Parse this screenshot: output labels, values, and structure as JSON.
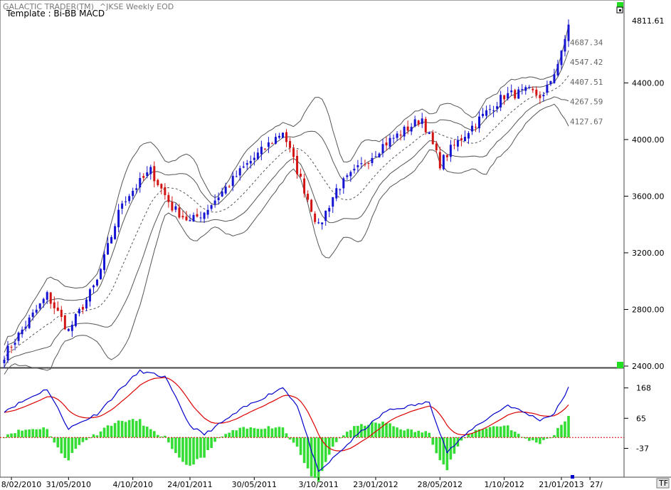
{
  "header": {
    "app": "GALACTIC TRADER(TM)",
    "symbol": "^JKSE Weekly EOD",
    "template": "Template : Bi-BB MACD"
  },
  "price_axis": {
    "last_price": "4811.61",
    "ticks": [
      "4400.00",
      "4000.00",
      "3600.00",
      "3200.00",
      "2800.00",
      "2400.00"
    ]
  },
  "band_labels": [
    "4687.34",
    "4547.42",
    "4407.51",
    "4267.59",
    "4127.67"
  ],
  "macd_axis": {
    "ticks": [
      "168",
      "65",
      "-37"
    ]
  },
  "date_axis": [
    "8/02/2010",
    "31/05/2010",
    "4/10/2010",
    "24/01/2011",
    "30/05/2011",
    "3/10/2011",
    "23/01/2012",
    "28/05/2012",
    "1/10/2012",
    "21/01/2013",
    "27/"
  ],
  "buttons": {
    "tf": "TF"
  },
  "colors": {
    "up": "#1414d2",
    "down": "#d21414",
    "hist": "#33dd33",
    "signal": "#dd0000",
    "macd": "#0000cc",
    "band": "#555555"
  },
  "chart_data": {
    "type": "candlestick",
    "title": "^JKSE Weekly EOD",
    "period": "weekly",
    "x_range": [
      "2010-01-25",
      "2013-02-04"
    ],
    "ylim": [
      2400,
      4900
    ],
    "price_path": [
      [
        "2010-01-25",
        2480
      ],
      [
        "2010-04-19",
        2900
      ],
      [
        "2010-05-31",
        2650
      ],
      [
        "2010-07-26",
        3000
      ],
      [
        "2010-09-13",
        3560
      ],
      [
        "2010-11-08",
        3780
      ],
      [
        "2010-12-20",
        3520
      ],
      [
        "2011-01-24",
        3420
      ],
      [
        "2011-02-21",
        3490
      ],
      [
        "2011-05-09",
        3800
      ],
      [
        "2011-07-25",
        4060
      ],
      [
        "2011-08-15",
        3850
      ],
      [
        "2011-10-03",
        3380
      ],
      [
        "2011-11-07",
        3650
      ],
      [
        "2011-12-19",
        3790
      ],
      [
        "2012-02-06",
        3960
      ],
      [
        "2012-04-23",
        4150
      ],
      [
        "2012-05-28",
        3830
      ],
      [
        "2012-06-18",
        3930
      ],
      [
        "2012-08-06",
        4120
      ],
      [
        "2012-10-01",
        4310
      ],
      [
        "2012-11-19",
        4340
      ],
      [
        "2012-12-17",
        4300
      ],
      [
        "2013-01-21",
        4600
      ],
      [
        "2013-02-04",
        4811.61
      ]
    ],
    "last_close": 4811.61,
    "bands_at_last_bar": [
      4687.34,
      4547.42,
      4407.51,
      4267.59,
      4127.67
    ],
    "macd": {
      "ylim": [
        -130,
        230
      ],
      "ticks": [
        168,
        65,
        -37
      ],
      "path": [
        [
          "2010-01-25",
          90
        ],
        [
          "2010-04-19",
          165
        ],
        [
          "2010-05-31",
          30
        ],
        [
          "2010-07-26",
          80
        ],
        [
          "2010-09-13",
          170
        ],
        [
          "2010-10-18",
          225
        ],
        [
          "2010-12-06",
          205
        ],
        [
          "2011-01-24",
          40
        ],
        [
          "2011-02-21",
          10
        ],
        [
          "2011-05-09",
          100
        ],
        [
          "2011-07-25",
          170
        ],
        [
          "2011-08-22",
          110
        ],
        [
          "2011-10-03",
          -120
        ],
        [
          "2011-11-07",
          -60
        ],
        [
          "2011-12-19",
          10
        ],
        [
          "2012-02-13",
          90
        ],
        [
          "2012-05-07",
          120
        ],
        [
          "2012-06-11",
          -50
        ],
        [
          "2012-07-30",
          30
        ],
        [
          "2012-10-08",
          110
        ],
        [
          "2012-12-10",
          60
        ],
        [
          "2013-01-07",
          80
        ],
        [
          "2013-02-04",
          168
        ]
      ]
    }
  }
}
